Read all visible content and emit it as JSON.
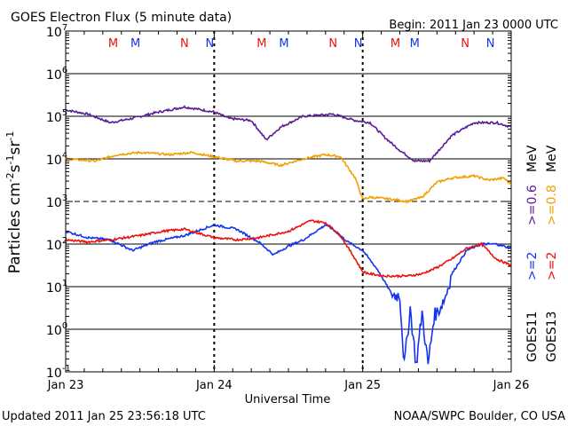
{
  "header": {
    "title": "GOES Electron Flux (5 minute data)",
    "begin": "Begin: 2011 Jan 23 0000 UTC"
  },
  "footer": {
    "updated": "Updated 2011 Jan 25 23:56:18 UTC",
    "credit": "NOAA/SWPC Boulder, CO USA"
  },
  "colors": {
    "red": "#e8120e",
    "blue": "#1433f0",
    "purple": "#5a1a9a",
    "orange": "#f0a000",
    "black": "#000000"
  },
  "right_labels": {
    "goes11": "GOES11",
    "goes13": "GOES13",
    "gt2_blue": ">=2",
    "gt2_red": ">=2",
    "gt06": ">=0.6",
    "gt08": ">=0.8",
    "mev": "MeV"
  },
  "chart_data": {
    "type": "line",
    "xlabel": "Universal Time",
    "ylabel": "Particles cm-2s-1sr-1",
    "xlim": [
      0,
      3
    ],
    "ylim_log10": [
      -1,
      7
    ],
    "y_scale": "log",
    "x_tick_labels": [
      "Jan 23",
      "Jan 24",
      "Jan 25",
      "Jan 26"
    ],
    "y_tick_exponents": [
      -1,
      0,
      1,
      2,
      3,
      4,
      5,
      6,
      7
    ],
    "threshold_lines": [
      {
        "value": 1000,
        "style": "dashed"
      }
    ],
    "markers": [
      {
        "day": 0.32,
        "text": "M",
        "color": "#e8120e"
      },
      {
        "day": 0.47,
        "text": "M",
        "color": "#1433f0"
      },
      {
        "day": 0.8,
        "text": "N",
        "color": "#e8120e"
      },
      {
        "day": 0.97,
        "text": "N",
        "color": "#1433f0"
      },
      {
        "day": 1.32,
        "text": "M",
        "color": "#e8120e"
      },
      {
        "day": 1.47,
        "text": "M",
        "color": "#1433f0"
      },
      {
        "day": 1.8,
        "text": "N",
        "color": "#e8120e"
      },
      {
        "day": 1.97,
        "text": "N",
        "color": "#1433f0"
      },
      {
        "day": 2.22,
        "text": "M",
        "color": "#e8120e"
      },
      {
        "day": 2.35,
        "text": "M",
        "color": "#1433f0"
      },
      {
        "day": 2.69,
        "text": "N",
        "color": "#e8120e"
      },
      {
        "day": 2.86,
        "text": "N",
        "color": "#1433f0"
      }
    ],
    "series": [
      {
        "color": "#5a1a9a",
        "x": [
          0,
          0.15,
          0.3,
          0.45,
          0.6,
          0.8,
          1.0,
          1.1,
          1.25,
          1.35,
          1.45,
          1.6,
          1.8,
          1.95,
          2.05,
          2.15,
          2.25,
          2.35,
          2.45,
          2.5,
          2.6,
          2.75,
          2.9,
          3.0
        ],
        "log10": [
          5.15,
          5.05,
          4.85,
          4.95,
          5.08,
          5.22,
          5.1,
          4.95,
          4.9,
          4.45,
          4.75,
          5.0,
          5.05,
          4.9,
          4.85,
          4.5,
          4.2,
          3.95,
          3.95,
          4.15,
          4.55,
          4.85,
          4.85,
          4.75
        ]
      },
      {
        "color": "#f0a000",
        "x": [
          0,
          0.2,
          0.35,
          0.5,
          0.7,
          0.85,
          1.0,
          1.15,
          1.3,
          1.45,
          1.6,
          1.75,
          1.85,
          1.95,
          2.0,
          2.05,
          2.2,
          2.3,
          2.4,
          2.5,
          2.6,
          2.75,
          2.85,
          2.95,
          3.0
        ],
        "log10": [
          4.0,
          3.95,
          4.1,
          4.15,
          4.1,
          4.15,
          4.05,
          3.95,
          3.95,
          3.85,
          4.0,
          4.1,
          4.05,
          3.55,
          3.05,
          3.1,
          3.05,
          3.0,
          3.1,
          3.45,
          3.55,
          3.6,
          3.5,
          3.55,
          3.4
        ]
      },
      {
        "color": "#1433f0",
        "x": [
          0,
          0.15,
          0.3,
          0.45,
          0.6,
          0.8,
          1.0,
          1.15,
          1.3,
          1.4,
          1.5,
          1.6,
          1.75,
          1.8,
          1.9,
          2.0,
          2.1,
          2.2,
          2.25,
          2.28,
          2.32,
          2.36,
          2.4,
          2.44,
          2.48,
          2.52,
          2.56,
          2.6,
          2.7,
          2.8,
          2.9,
          3.0
        ],
        "log10": [
          2.3,
          2.15,
          2.1,
          1.85,
          2.05,
          2.2,
          2.45,
          2.35,
          2.05,
          1.75,
          1.95,
          2.1,
          2.45,
          2.35,
          2.05,
          1.85,
          1.4,
          0.8,
          0.8,
          -0.85,
          0.5,
          -0.85,
          0.4,
          -0.85,
          0.3,
          0.5,
          0.8,
          1.3,
          1.85,
          2.0,
          2.0,
          1.9
        ]
      },
      {
        "color": "#e8120e",
        "x": [
          0,
          0.15,
          0.3,
          0.5,
          0.65,
          0.8,
          1.0,
          1.15,
          1.3,
          1.5,
          1.65,
          1.75,
          1.85,
          1.95,
          2.0,
          2.05,
          2.15,
          2.3,
          2.4,
          2.5,
          2.6,
          2.7,
          2.8,
          2.9,
          3.0
        ],
        "log10": [
          2.1,
          2.05,
          2.1,
          2.2,
          2.3,
          2.35,
          2.15,
          2.1,
          2.15,
          2.3,
          2.55,
          2.5,
          2.2,
          1.65,
          1.35,
          1.3,
          1.25,
          1.25,
          1.3,
          1.45,
          1.65,
          1.9,
          2.0,
          1.65,
          1.5
        ]
      }
    ]
  }
}
